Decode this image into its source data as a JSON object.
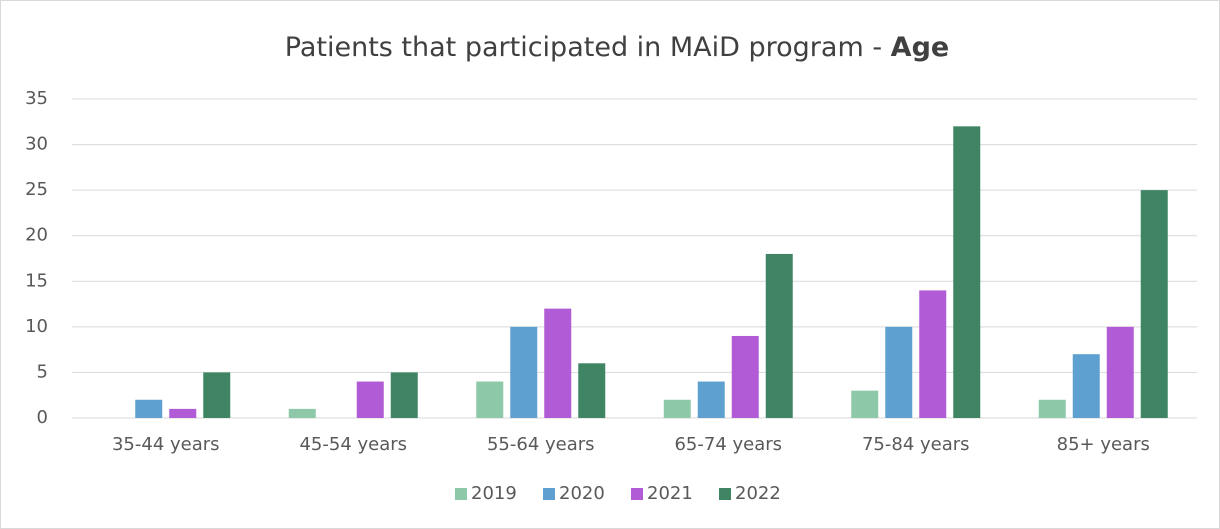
{
  "chart_data": {
    "type": "bar",
    "title": "Patients that participated in MAiD program -",
    "title_emphasis": "Age",
    "categories": [
      "35-44 years",
      "45-54 years",
      "55-64 years",
      "65-74 years",
      "75-84 years",
      "85+ years"
    ],
    "series": [
      {
        "name": "2019",
        "color": "#8dc9a8",
        "values": [
          0,
          1,
          4,
          2,
          3,
          2
        ]
      },
      {
        "name": "2020",
        "color": "#5ea0cf",
        "values": [
          2,
          0,
          10,
          4,
          10,
          7
        ]
      },
      {
        "name": "2021",
        "color": "#b25bd6",
        "values": [
          1,
          4,
          12,
          9,
          14,
          10
        ]
      },
      {
        "name": "2022",
        "color": "#3f8563",
        "values": [
          5,
          5,
          6,
          18,
          32,
          25
        ]
      }
    ],
    "ylim": [
      0,
      35
    ],
    "yticks": [
      0,
      5,
      10,
      15,
      20,
      25,
      30,
      35
    ],
    "grid": true,
    "legend": "bottom"
  }
}
